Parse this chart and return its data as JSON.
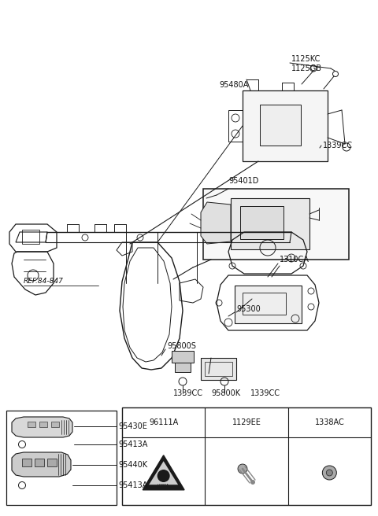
{
  "bg_color": "#ffffff",
  "fig_width": 4.8,
  "fig_height": 6.56,
  "dpi": 100,
  "lc": "#1a1a1a",
  "fs": 7.0,
  "table_headers": [
    "96111A",
    "1129EE",
    "1338AC"
  ]
}
